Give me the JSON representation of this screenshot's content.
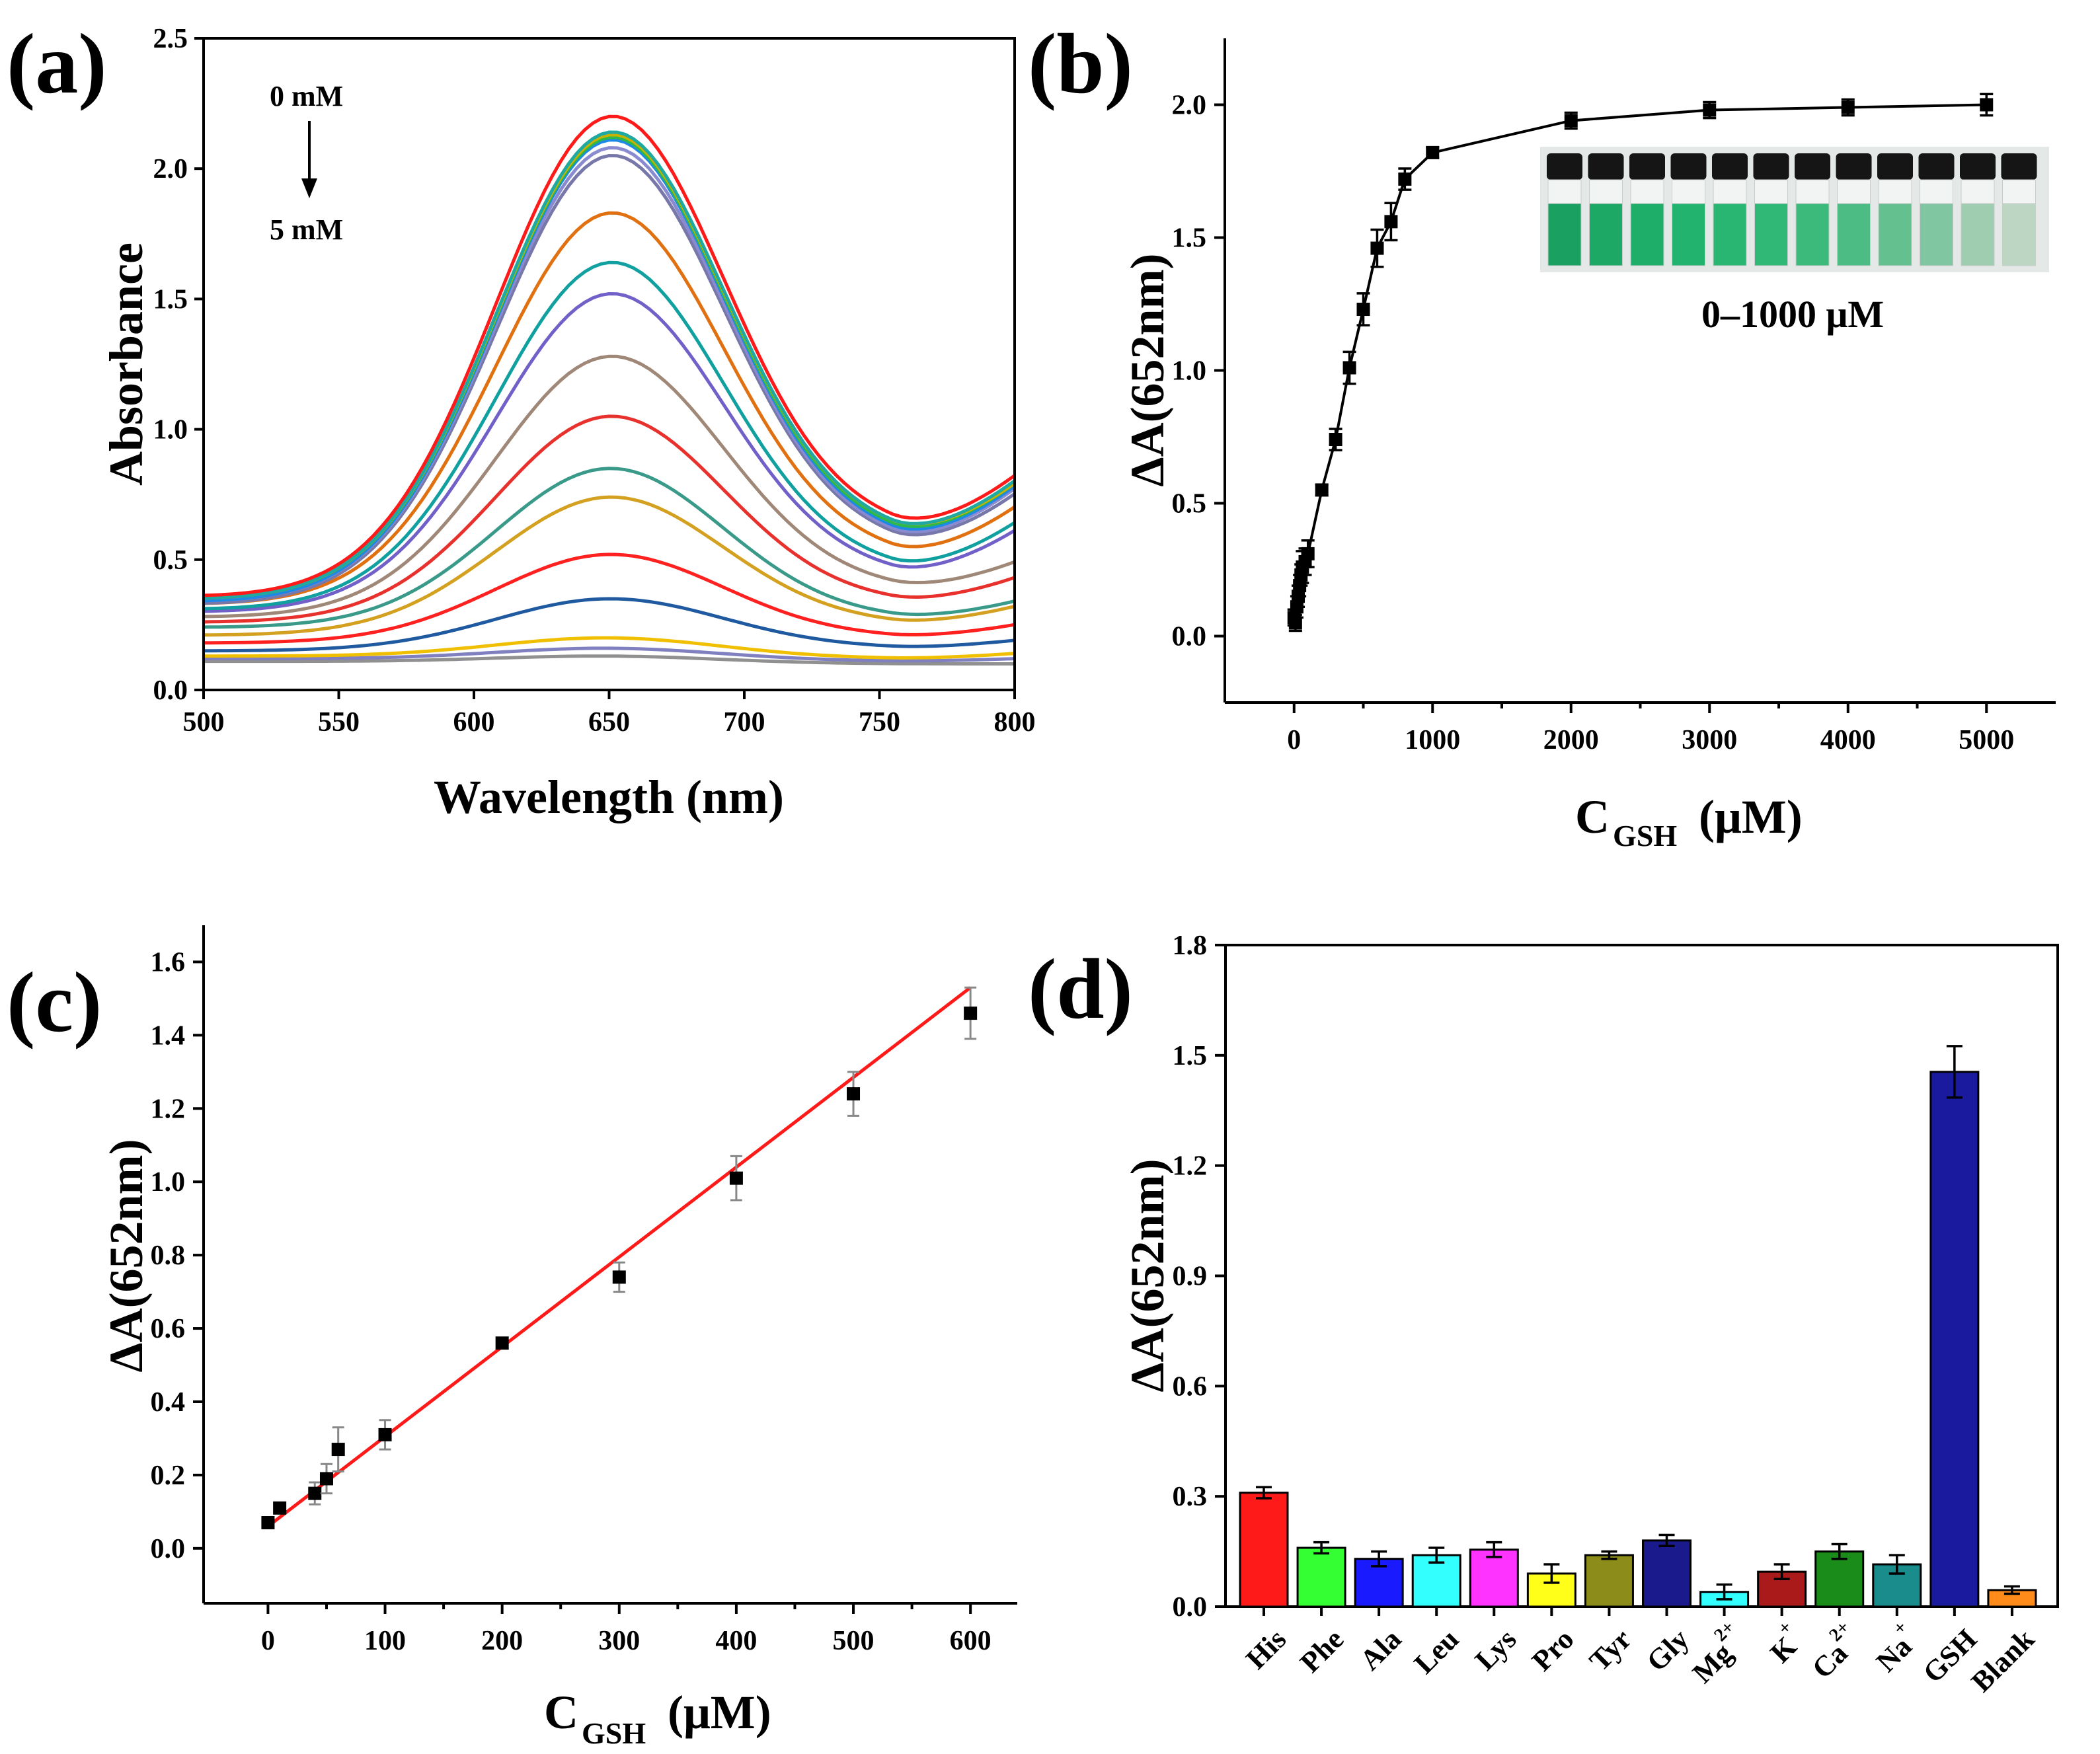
{
  "chart_data": [
    {
      "panel": "(a)",
      "type": "line",
      "xlabel": "Wavelength (nm)",
      "ylabel": "Absorbance",
      "xlim": [
        500,
        800
      ],
      "ylim": [
        0.0,
        2.5
      ],
      "xticks": [
        "500",
        "550",
        "600",
        "650",
        "700",
        "750",
        "800"
      ],
      "yticks": [
        "0.0",
        "0.5",
        "1.0",
        "1.5",
        "2.0",
        "2.5"
      ],
      "annotations": [
        "0 mM",
        "5 mM"
      ],
      "peak_nm": 650,
      "series": [
        {
          "color": "#ff1a1a",
          "values": {
            "a500": 0.36,
            "peak": 2.2,
            "min": 0.6,
            "a800": 0.82
          }
        },
        {
          "color": "#1fa9a1",
          "values": {
            "a500": 0.35,
            "peak": 2.14,
            "min": 0.58,
            "a800": 0.8
          }
        },
        {
          "color": "#c8b400",
          "values": {
            "a500": 0.35,
            "peak": 2.13,
            "min": 0.58,
            "a800": 0.79
          }
        },
        {
          "color": "#2db84a",
          "values": {
            "a500": 0.35,
            "peak": 2.12,
            "min": 0.57,
            "a800": 0.79
          }
        },
        {
          "color": "#1e88e5",
          "values": {
            "a500": 0.34,
            "peak": 2.11,
            "min": 0.56,
            "a800": 0.78
          }
        },
        {
          "color": "#8a8ad0",
          "values": {
            "a500": 0.34,
            "peak": 2.08,
            "min": 0.55,
            "a800": 0.77
          }
        },
        {
          "color": "#7777aa",
          "values": {
            "a500": 0.33,
            "peak": 2.05,
            "min": 0.54,
            "a800": 0.75
          }
        },
        {
          "color": "#e07010",
          "values": {
            "a500": 0.33,
            "peak": 1.83,
            "min": 0.5,
            "a800": 0.7
          }
        },
        {
          "color": "#10a0a0",
          "values": {
            "a500": 0.31,
            "peak": 1.64,
            "min": 0.45,
            "a800": 0.64
          }
        },
        {
          "color": "#7060c8",
          "values": {
            "a500": 0.3,
            "peak": 1.52,
            "min": 0.43,
            "a800": 0.61
          }
        },
        {
          "color": "#a08878",
          "values": {
            "a500": 0.28,
            "peak": 1.28,
            "min": 0.38,
            "a800": 0.49
          }
        },
        {
          "color": "#e8302c",
          "values": {
            "a500": 0.26,
            "peak": 1.05,
            "min": 0.33,
            "a800": 0.43
          }
        },
        {
          "color": "#3a9a8a",
          "values": {
            "a500": 0.24,
            "peak": 0.85,
            "min": 0.27,
            "a800": 0.34
          }
        },
        {
          "color": "#d4a020",
          "values": {
            "a500": 0.21,
            "peak": 0.74,
            "min": 0.25,
            "a800": 0.32
          }
        },
        {
          "color": "#ff2020",
          "values": {
            "a500": 0.18,
            "peak": 0.52,
            "min": 0.2,
            "a800": 0.25
          }
        },
        {
          "color": "#1f5aa0",
          "values": {
            "a500": 0.15,
            "peak": 0.35,
            "min": 0.16,
            "a800": 0.19
          }
        },
        {
          "color": "#f0c000",
          "values": {
            "a500": 0.13,
            "peak": 0.2,
            "min": 0.12,
            "a800": 0.14
          }
        },
        {
          "color": "#8080c0",
          "values": {
            "a500": 0.12,
            "peak": 0.16,
            "min": 0.11,
            "a800": 0.12
          }
        },
        {
          "color": "#909090",
          "values": {
            "a500": 0.11,
            "peak": 0.13,
            "min": 0.1,
            "a800": 0.1
          }
        }
      ]
    },
    {
      "panel": "(b)",
      "type": "line",
      "xlabel_main": "C",
      "xlabel_sub": "GSH",
      "xlabel_unit": "(μM)",
      "ylabel": "ΔA(652nm)",
      "xlim": [
        -500,
        5500
      ],
      "ylim": [
        -0.25,
        2.25
      ],
      "xticks": [
        "0",
        "1000",
        "2000",
        "3000",
        "4000",
        "5000"
      ],
      "yticks": [
        "0.0",
        "0.5",
        "1.0",
        "1.5",
        "2.0"
      ],
      "inset_label": "0–1000 μM",
      "x": [
        0,
        10,
        20,
        30,
        40,
        50,
        60,
        80,
        100,
        200,
        300,
        400,
        500,
        600,
        700,
        800,
        1000,
        2000,
        3000,
        4000,
        5000
      ],
      "y": [
        0.07,
        0.05,
        0.11,
        0.15,
        0.19,
        0.23,
        0.26,
        0.28,
        0.31,
        0.55,
        0.74,
        1.01,
        1.23,
        1.46,
        1.56,
        1.72,
        1.82,
        1.94,
        1.98,
        1.99,
        2.0
      ],
      "err": [
        0.03,
        0.03,
        0.04,
        0.04,
        0.04,
        0.04,
        0.06,
        0.05,
        0.05,
        0.02,
        0.04,
        0.06,
        0.06,
        0.07,
        0.07,
        0.04,
        0.02,
        0.03,
        0.03,
        0.03,
        0.04
      ]
    },
    {
      "panel": "(c)",
      "type": "scatter",
      "xlabel_main": "C",
      "xlabel_sub": "GSH",
      "xlabel_unit": "(μM)",
      "ylabel": "ΔA(652nm)",
      "xlim": [
        -55,
        640
      ],
      "ylim": [
        -0.15,
        1.7
      ],
      "xticks": [
        "0",
        "100",
        "200",
        "300",
        "400",
        "500",
        "600"
      ],
      "yticks": [
        "0.0",
        "0.2",
        "0.4",
        "0.6",
        "0.8",
        "1.0",
        "1.2",
        "1.4",
        "1.6"
      ],
      "x": [
        0,
        10,
        40,
        50,
        60,
        100,
        200,
        300,
        400,
        500,
        600
      ],
      "y": [
        0.07,
        0.11,
        0.15,
        0.19,
        0.27,
        0.31,
        0.56,
        0.74,
        1.01,
        1.24,
        1.46
      ],
      "err": [
        0.01,
        0.01,
        0.03,
        0.04,
        0.06,
        0.04,
        0.01,
        0.04,
        0.06,
        0.06,
        0.07
      ],
      "fit": {
        "x0": 0,
        "y0": 0.06,
        "x1": 600,
        "y1": 1.53
      }
    },
    {
      "panel": "(d)",
      "type": "bar",
      "ylabel": "ΔA(652nm)",
      "ylim": [
        0.0,
        1.8
      ],
      "yticks": [
        "0.0",
        "0.3",
        "0.6",
        "0.9",
        "1.2",
        "1.5",
        "1.8"
      ],
      "categories": [
        {
          "base": "His",
          "sup": ""
        },
        {
          "base": "Phe",
          "sup": ""
        },
        {
          "base": "Ala",
          "sup": ""
        },
        {
          "base": "Leu",
          "sup": ""
        },
        {
          "base": "Lys",
          "sup": ""
        },
        {
          "base": "Pro",
          "sup": ""
        },
        {
          "base": "Tyr",
          "sup": ""
        },
        {
          "base": "Gly",
          "sup": ""
        },
        {
          "base": "Mg",
          "sup": "2+"
        },
        {
          "base": "K",
          "sup": "+"
        },
        {
          "base": "Ca",
          "sup": "2+"
        },
        {
          "base": "Na",
          "sup": "+"
        },
        {
          "base": "GSH",
          "sup": ""
        },
        {
          "base": "Blank",
          "sup": ""
        }
      ],
      "values": [
        0.31,
        0.16,
        0.13,
        0.14,
        0.155,
        0.09,
        0.14,
        0.18,
        0.04,
        0.095,
        0.15,
        0.115,
        1.455,
        0.045
      ],
      "err": [
        0.015,
        0.015,
        0.02,
        0.02,
        0.02,
        0.025,
        0.01,
        0.015,
        0.02,
        0.02,
        0.02,
        0.025,
        0.07,
        0.01
      ],
      "colors": [
        "#ff1a1a",
        "#33ff33",
        "#1a1aff",
        "#33ffff",
        "#ff33ff",
        "#ffff1a",
        "#8c8c1a",
        "#1a1a8c",
        "#33ffff",
        "#aa1a1a",
        "#1a8c1a",
        "#1a8c8c",
        "#1a1a9e",
        "#ff8c1a"
      ]
    }
  ]
}
